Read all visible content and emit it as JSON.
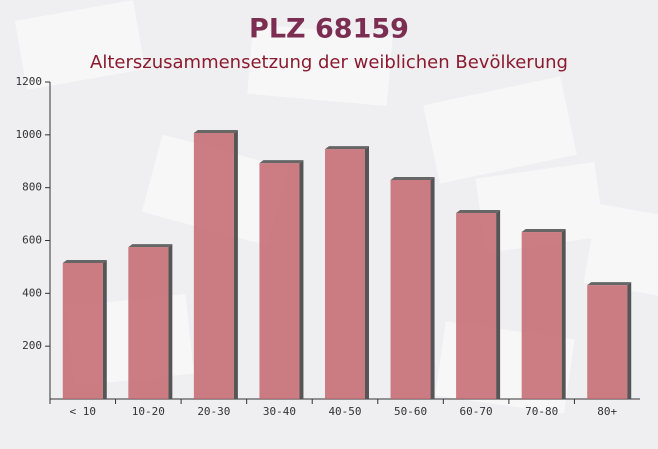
{
  "chart_data": {
    "type": "bar",
    "title": "PLZ 68159",
    "subtitle": "Alterszusammensetzung der weiblichen Bevölkerung",
    "categories": [
      "< 10",
      "10-20",
      "20-30",
      "30-40",
      "40-50",
      "50-60",
      "60-70",
      "70-80",
      "80+"
    ],
    "values": [
      515,
      575,
      1007,
      893,
      946,
      829,
      704,
      632,
      431
    ],
    "color": "#c4666f",
    "ylim": [
      0,
      1200
    ],
    "yticks": [
      200,
      400,
      600,
      800,
      1000,
      1200
    ]
  }
}
